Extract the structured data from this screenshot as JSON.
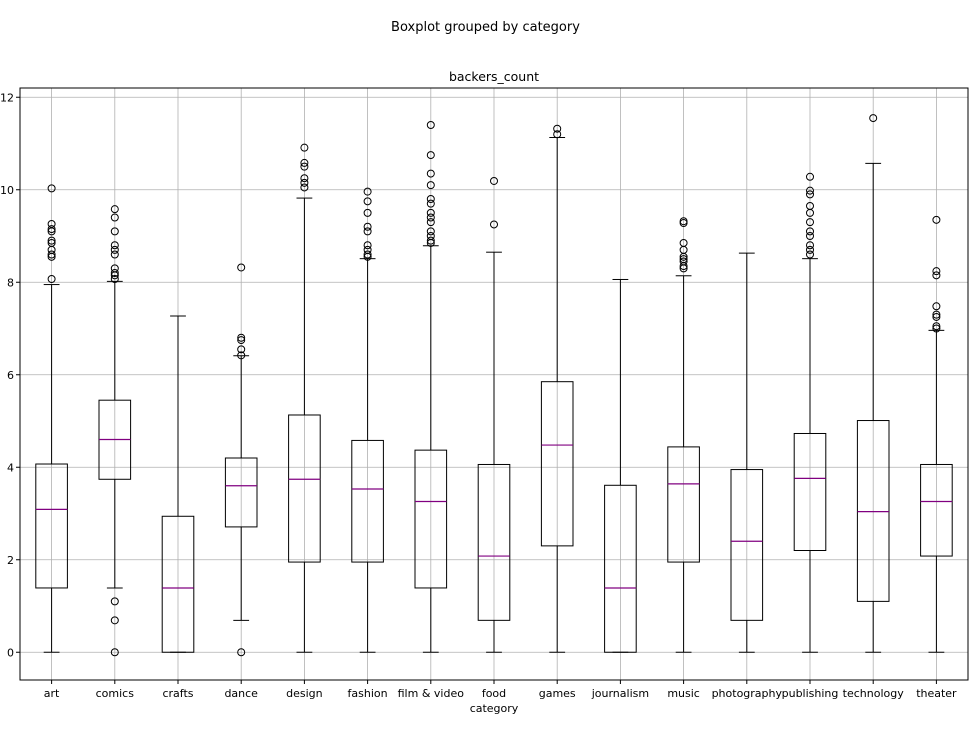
{
  "suptitle": "Boxplot grouped by category",
  "chart_data": {
    "type": "boxplot",
    "title": "backers_count",
    "xlabel": "category",
    "ylabel": "",
    "ylim": [
      -0.6,
      12.2
    ],
    "yticks": [
      0,
      2,
      4,
      6,
      8,
      10,
      12
    ],
    "grid": true,
    "median_color": "#800080",
    "categories": [
      "art",
      "comics",
      "crafts",
      "dance",
      "design",
      "fashion",
      "film & video",
      "food",
      "games",
      "journalism",
      "music",
      "photography",
      "publishing",
      "technology",
      "theater"
    ],
    "boxes": [
      {
        "min": 0,
        "q1": 1.39,
        "median": 3.09,
        "q3": 4.07,
        "max": 7.95,
        "outliers": [
          8.07,
          8.55,
          8.6,
          8.7,
          8.85,
          8.9,
          9.1,
          9.15,
          9.26,
          10.03
        ]
      },
      {
        "min": 1.39,
        "q1": 3.74,
        "median": 4.6,
        "q3": 5.45,
        "max": 8.02,
        "outliers": [
          0.0,
          0.69,
          1.1,
          8.07,
          8.15,
          8.2,
          8.3,
          8.6,
          8.7,
          8.8,
          9.1,
          9.4,
          9.58
        ]
      },
      {
        "min": 0,
        "q1": 0,
        "median": 1.39,
        "q3": 2.94,
        "max": 7.27,
        "outliers": []
      },
      {
        "min": 0.69,
        "q1": 2.71,
        "median": 3.6,
        "q3": 4.2,
        "max": 6.41,
        "outliers": [
          0.0,
          6.42,
          6.55,
          6.75,
          6.8,
          8.32
        ]
      },
      {
        "min": 0,
        "q1": 1.95,
        "median": 3.74,
        "q3": 5.13,
        "max": 9.82,
        "outliers": [
          10.05,
          10.15,
          10.25,
          10.5,
          10.58,
          10.91
        ]
      },
      {
        "min": 0,
        "q1": 1.95,
        "median": 3.53,
        "q3": 4.58,
        "max": 8.51,
        "outliers": [
          8.55,
          8.6,
          8.7,
          8.8,
          9.1,
          9.2,
          9.5,
          9.75,
          9.96
        ]
      },
      {
        "min": 0,
        "q1": 1.39,
        "median": 3.26,
        "q3": 4.37,
        "max": 8.79,
        "outliers": [
          8.85,
          8.9,
          9.0,
          9.1,
          9.3,
          9.4,
          9.5,
          9.7,
          9.8,
          10.1,
          10.35,
          10.75,
          11.4
        ]
      },
      {
        "min": 0,
        "q1": 0.69,
        "median": 2.08,
        "q3": 4.06,
        "max": 8.65,
        "outliers": [
          9.25,
          10.19
        ]
      },
      {
        "min": 0,
        "q1": 2.3,
        "median": 4.48,
        "q3": 5.85,
        "max": 11.13,
        "outliers": [
          11.2,
          11.32
        ]
      },
      {
        "min": 0,
        "q1": 0,
        "median": 1.39,
        "q3": 3.61,
        "max": 8.06,
        "outliers": []
      },
      {
        "min": 0,
        "q1": 1.95,
        "median": 3.64,
        "q3": 4.44,
        "max": 8.14,
        "outliers": [
          8.3,
          8.35,
          8.45,
          8.5,
          8.55,
          8.7,
          8.85,
          9.28,
          9.32
        ]
      },
      {
        "min": 0,
        "q1": 0.69,
        "median": 2.4,
        "q3": 3.95,
        "max": 8.63,
        "outliers": []
      },
      {
        "min": 0,
        "q1": 2.2,
        "median": 3.76,
        "q3": 4.73,
        "max": 8.51,
        "outliers": [
          8.6,
          8.7,
          8.8,
          9.0,
          9.1,
          9.3,
          9.5,
          9.65,
          9.9,
          9.98,
          10.28
        ]
      },
      {
        "min": 0,
        "q1": 1.1,
        "median": 3.04,
        "q3": 5.01,
        "max": 10.57,
        "outliers": [
          11.55
        ]
      },
      {
        "min": 0,
        "q1": 2.08,
        "median": 3.26,
        "q3": 4.06,
        "max": 6.96,
        "outliers": [
          7.0,
          7.05,
          7.25,
          7.3,
          7.48,
          8.15,
          8.24,
          9.35
        ]
      }
    ]
  }
}
